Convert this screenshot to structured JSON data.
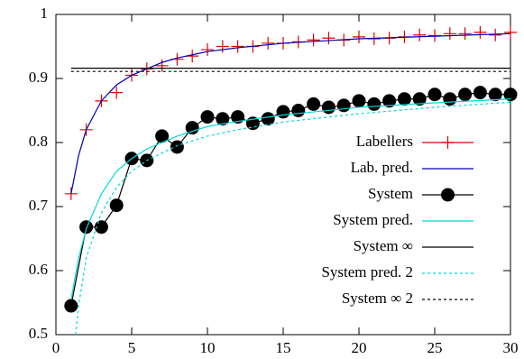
{
  "chart_data": {
    "type": "line",
    "xlim": [
      0,
      30
    ],
    "ylim": [
      0.5,
      1
    ],
    "xticks": [
      0,
      5,
      10,
      15,
      20,
      25,
      30
    ],
    "yticks": [
      0.5,
      0.6,
      0.7,
      0.8,
      0.9,
      1
    ],
    "legend": "right",
    "series": [
      {
        "name": "Labellers",
        "color": "#e00000",
        "style": "points",
        "marker": "plus",
        "x": [
          1,
          2,
          3,
          4,
          5,
          6,
          7,
          8,
          9,
          10,
          11,
          12,
          13,
          14,
          15,
          16,
          17,
          18,
          19,
          20,
          21,
          22,
          23,
          24,
          25,
          26,
          27,
          28,
          29,
          30
        ],
        "values": [
          0.72,
          0.82,
          0.865,
          0.878,
          0.905,
          0.915,
          0.92,
          0.93,
          0.935,
          0.945,
          0.95,
          0.95,
          0.95,
          0.955,
          0.955,
          0.957,
          0.96,
          0.963,
          0.96,
          0.965,
          0.962,
          0.963,
          0.965,
          0.968,
          0.967,
          0.97,
          0.97,
          0.972,
          0.968,
          0.972
        ]
      },
      {
        "name": "Lab. pred.",
        "color": "#0000b0",
        "style": "lines",
        "x": [
          1,
          1.5,
          2,
          3,
          4,
          5,
          6,
          7,
          8,
          9,
          10,
          12,
          15,
          20,
          25,
          30
        ],
        "values": [
          0.72,
          0.78,
          0.82,
          0.865,
          0.89,
          0.905,
          0.915,
          0.925,
          0.932,
          0.937,
          0.942,
          0.948,
          0.955,
          0.962,
          0.966,
          0.97
        ]
      },
      {
        "name": "System",
        "color": "#000000",
        "style": "linespoints",
        "marker": "circle",
        "x": [
          1,
          2,
          3,
          4,
          5,
          6,
          7,
          8,
          9,
          10,
          11,
          12,
          13,
          14,
          15,
          16,
          17,
          18,
          19,
          20,
          21,
          22,
          23,
          24,
          25,
          26,
          27,
          28,
          29,
          30
        ],
        "values": [
          0.545,
          0.668,
          0.668,
          0.702,
          0.775,
          0.772,
          0.81,
          0.793,
          0.823,
          0.84,
          0.837,
          0.84,
          0.83,
          0.837,
          0.848,
          0.85,
          0.86,
          0.855,
          0.858,
          0.865,
          0.86,
          0.865,
          0.868,
          0.868,
          0.875,
          0.868,
          0.875,
          0.878,
          0.875,
          0.875
        ]
      },
      {
        "name": "System pred.",
        "color": "#00d8d8",
        "style": "lines",
        "x": [
          1,
          1.5,
          2,
          3,
          4,
          5,
          6,
          8,
          10,
          12,
          15,
          20,
          25,
          30
        ],
        "values": [
          0.555,
          0.62,
          0.665,
          0.72,
          0.755,
          0.775,
          0.79,
          0.81,
          0.825,
          0.833,
          0.843,
          0.855,
          0.862,
          0.868
        ]
      },
      {
        "name": "System ∞",
        "color": "#000000",
        "style": "lines",
        "x": [
          1,
          30
        ],
        "values": [
          0.916,
          0.916
        ]
      },
      {
        "name": "System pred. 2",
        "color": "#00d8d8",
        "style": "lines",
        "dash": true,
        "x": [
          1.3,
          1.5,
          2,
          3,
          4,
          5,
          6,
          8,
          10,
          12,
          15,
          20,
          25,
          30
        ],
        "values": [
          0.5,
          0.545,
          0.62,
          0.69,
          0.73,
          0.755,
          0.772,
          0.795,
          0.81,
          0.82,
          0.832,
          0.845,
          0.855,
          0.863
        ]
      },
      {
        "name": "System ∞ 2",
        "color": "#000000",
        "style": "lines",
        "dash": true,
        "x": [
          1,
          30
        ],
        "values": [
          0.911,
          0.911
        ]
      }
    ]
  }
}
